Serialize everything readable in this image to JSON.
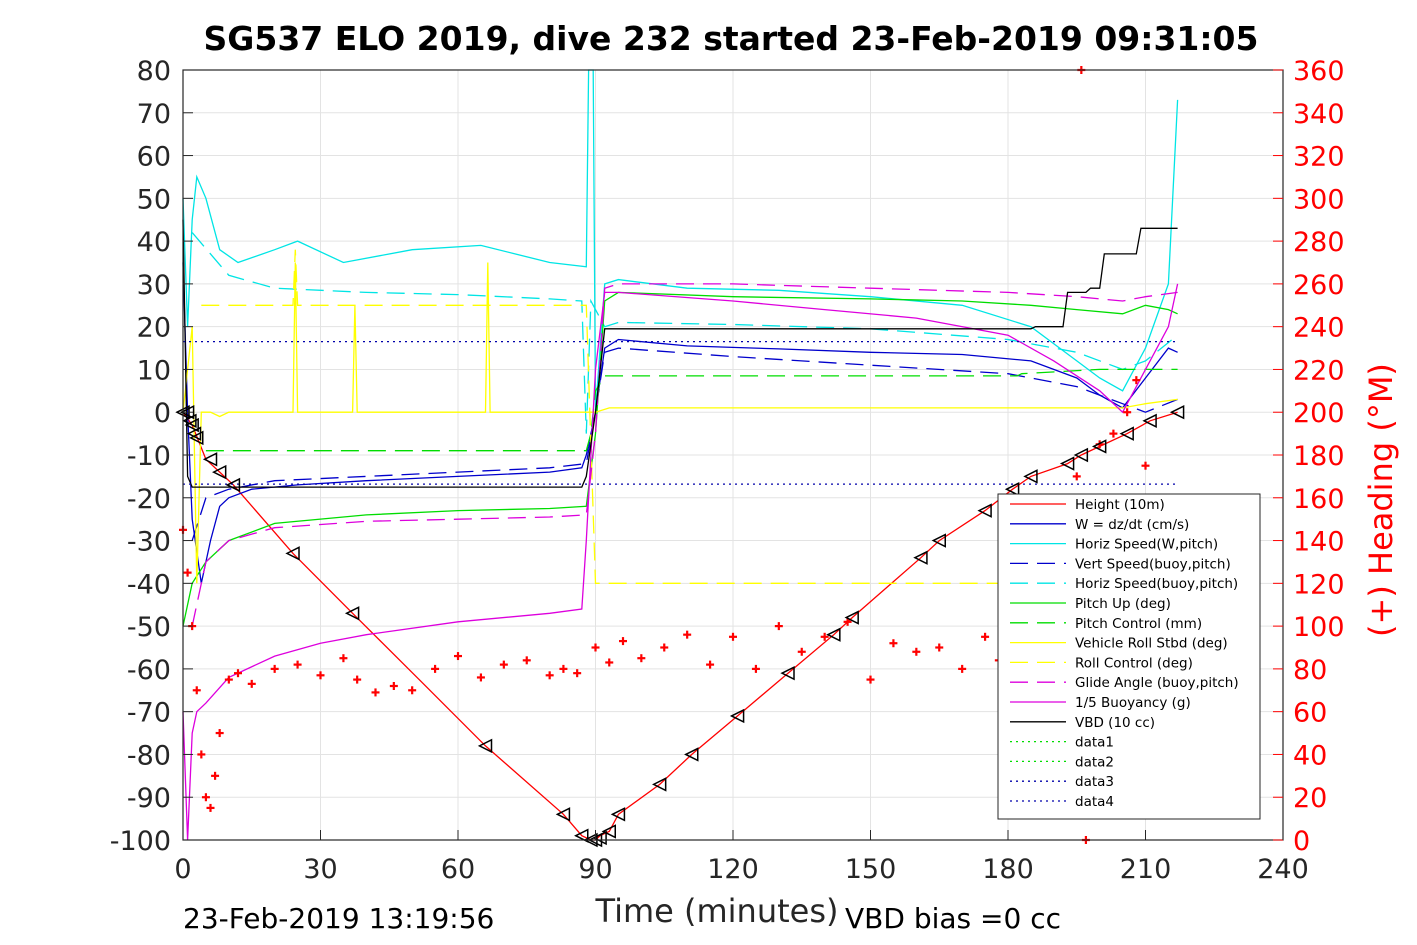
{
  "chart_data": {
    "type": "line",
    "title": "SG537 ELO 2019, dive 232 started 23-Feb-2019 09:31:05",
    "xlabel": "Time (minutes)",
    "ylabel": "",
    "ylabel_right": "(+) Heading (°M)",
    "xlim": [
      0,
      240
    ],
    "ylim": [
      -100,
      80
    ],
    "ylim_right": [
      0,
      360
    ],
    "x_ticks": [
      "0",
      "30",
      "60",
      "90",
      "120",
      "150",
      "180",
      "210",
      "240"
    ],
    "y_ticks": [
      "80",
      "70",
      "60",
      "50",
      "40",
      "30",
      "20",
      "10",
      "0",
      "-10",
      "-20",
      "-30",
      "-40",
      "-50",
      "-60",
      "-70",
      "-80",
      "-90",
      "-100"
    ],
    "y_right_ticks": [
      "360",
      "340",
      "320",
      "300",
      "280",
      "260",
      "240",
      "220",
      "200",
      "180",
      "160",
      "140",
      "120",
      "100",
      "80",
      "60",
      "40",
      "20",
      "0"
    ],
    "grid": true,
    "legend_position": "lower-right",
    "footer_left": "23-Feb-2019 13:19:56",
    "footer_right": "VBD bias =0 cc",
    "series": [
      {
        "name": "Height (10m)",
        "color": "#ff0000",
        "style": "solid",
        "x": [
          0,
          2,
          5,
          8,
          11,
          24,
          37,
          52,
          66,
          83,
          87,
          89,
          90,
          91,
          93,
          95,
          104,
          111,
          121,
          132,
          142,
          146,
          161,
          165,
          175,
          181,
          185,
          193,
          196,
          200,
          206,
          211,
          217
        ],
        "y": [
          0,
          -3,
          -11,
          -14,
          -17,
          -33,
          -47,
          -63,
          -78,
          -94,
          -99,
          -100,
          -100,
          -99,
          -98,
          -94,
          -87,
          -80,
          -71,
          -61,
          -52,
          -48,
          -34,
          -30,
          -23,
          -18,
          -15,
          -12,
          -10,
          -8,
          -5,
          -2,
          0
        ]
      },
      {
        "name": "W = dz/dt (cm/s)",
        "color": "#0000cc",
        "style": "solid",
        "x": [
          0,
          1,
          2,
          4,
          6,
          8,
          10,
          15,
          25,
          40,
          60,
          80,
          87,
          88,
          90,
          92,
          95,
          110,
          130,
          150,
          170,
          185,
          195,
          200,
          205,
          210,
          215,
          217
        ],
        "y": [
          35,
          0,
          -25,
          -40,
          -30,
          -22,
          -20,
          -18,
          -17,
          -16,
          -15,
          -14,
          -13,
          -10,
          0,
          15,
          17,
          15.5,
          14.8,
          14,
          13.5,
          12,
          8,
          4,
          1,
          8,
          15,
          14
        ]
      },
      {
        "name": "Horiz Speed(W,pitch)",
        "color": "#00e5e5",
        "style": "solid",
        "x": [
          0,
          1,
          2,
          3,
          5,
          8,
          12,
          20,
          25,
          35,
          50,
          65,
          80,
          88,
          88.5,
          89.5,
          90,
          92,
          95,
          110,
          130,
          150,
          170,
          185,
          195,
          200,
          205,
          210,
          215,
          217
        ],
        "y": [
          50,
          20,
          45,
          55,
          50,
          38,
          35,
          38,
          40,
          35,
          38,
          39,
          35,
          34,
          80,
          80,
          0,
          30,
          31,
          29,
          28.5,
          27,
          25,
          20,
          12,
          8,
          5,
          15,
          30,
          73
        ]
      },
      {
        "name": "Vert Speed(buoy,pitch)",
        "color": "#0000cc",
        "style": "dashed",
        "x": [
          2,
          5,
          10,
          20,
          40,
          60,
          80,
          88,
          90,
          92,
          95,
          120,
          150,
          180,
          195,
          205,
          210,
          217
        ],
        "y": [
          -30,
          -20,
          -18,
          -16,
          -15,
          -14,
          -13,
          -12,
          0,
          14,
          15,
          13,
          11,
          9,
          6,
          2,
          0,
          3
        ]
      },
      {
        "name": "Horiz Speed(buoy,pitch)",
        "color": "#00e5e5",
        "style": "dashed",
        "x": [
          2,
          10,
          20,
          40,
          60,
          80,
          87,
          88,
          89,
          92,
          95,
          120,
          150,
          180,
          195,
          205,
          210,
          217
        ],
        "y": [
          42,
          32,
          29,
          28,
          27.5,
          26.5,
          26,
          -5,
          26,
          20,
          21,
          20.5,
          19.5,
          17,
          14,
          10,
          12,
          18
        ]
      },
      {
        "name": "Pitch Up (deg)",
        "color": "#00dd00",
        "style": "solid",
        "x": [
          0,
          2,
          5,
          10,
          20,
          40,
          60,
          80,
          88,
          90,
          92,
          95,
          120,
          150,
          170,
          185,
          195,
          205,
          210,
          215,
          217
        ],
        "y": [
          -50,
          -40,
          -35,
          -30,
          -26,
          -24,
          -23,
          -22.5,
          -22,
          -5,
          26,
          28,
          27,
          26.5,
          26,
          25,
          24,
          23,
          25,
          24,
          23
        ]
      },
      {
        "name": "Pitch Control (mm)",
        "color": "#00dd00",
        "style": "dashed",
        "x": [
          5,
          88,
          89,
          90,
          92,
          182,
          183,
          200,
          217
        ],
        "y": [
          -9,
          -9,
          -5,
          5,
          8.5,
          8.5,
          9,
          10,
          10
        ]
      },
      {
        "name": "Vehicle Roll Stbd (deg)",
        "color": "#ffff00",
        "style": "solid",
        "x": [
          0,
          2,
          3,
          4,
          6,
          8,
          10,
          24,
          24.5,
          25,
          37,
          37.5,
          38,
          66,
          66.5,
          67,
          87,
          90,
          93,
          95,
          205,
          210,
          217
        ],
        "y": [
          0,
          20,
          -40,
          0,
          0,
          -1,
          0,
          0,
          35,
          0,
          0,
          25,
          0,
          0,
          35,
          0,
          0,
          0,
          1,
          1,
          1,
          2,
          3
        ]
      },
      {
        "name": "Roll Control (deg)",
        "color": "#ffff00",
        "style": "dashed",
        "x": [
          4,
          24,
          24.5,
          25,
          88,
          90,
          95,
          205,
          217
        ],
        "y": [
          25,
          25,
          38,
          25,
          25,
          -40,
          -40,
          -40,
          -40
        ]
      },
      {
        "name": "Glide Angle (buoy,pitch)",
        "color": "#dd00dd",
        "style": "dashed",
        "x": [
          2,
          5,
          10,
          20,
          40,
          60,
          80,
          88,
          90,
          92,
          95,
          120,
          150,
          180,
          195,
          205,
          210,
          217
        ],
        "y": [
          -50,
          -35,
          -30,
          -27,
          -25.5,
          -25,
          -24.5,
          -24,
          -5,
          29,
          30,
          30,
          29,
          28,
          27,
          26,
          27,
          28
        ]
      },
      {
        "name": "1/5 Buoyancy (g)",
        "color": "#dd00dd",
        "style": "solid",
        "x": [
          0,
          1,
          2,
          3,
          5,
          10,
          20,
          30,
          40,
          60,
          80,
          87,
          88,
          90,
          92,
          95,
          120,
          140,
          160,
          180,
          190,
          200,
          205,
          210,
          215,
          217
        ],
        "y": [
          -70,
          -100,
          -75,
          -70,
          -68,
          -62,
          -57,
          -54,
          -52,
          -49,
          -47,
          -46,
          -30,
          10,
          28,
          28,
          26,
          24,
          22,
          18,
          12,
          5,
          0,
          10,
          20,
          30
        ]
      },
      {
        "name": "VBD (10 cc)",
        "color": "#000000",
        "style": "solid",
        "x": [
          0,
          1,
          2,
          87,
          88,
          90,
          92,
          185,
          186,
          192,
          193,
          197,
          198,
          200,
          201,
          208,
          209,
          217
        ],
        "y": [
          45,
          -15,
          -17.5,
          -17.5,
          -15,
          0,
          19.5,
          19.5,
          20,
          20,
          28,
          28,
          29,
          29,
          37,
          37,
          43,
          43
        ]
      },
      {
        "name": "data1",
        "color": "#00dd00",
        "style": "dotted",
        "x": [],
        "y": []
      },
      {
        "name": "data2",
        "color": "#00dd00",
        "style": "dotted",
        "x": [],
        "y": []
      },
      {
        "name": "data3",
        "color": "#0000aa",
        "style": "dotted",
        "x": [
          0,
          217
        ],
        "y": [
          16.5,
          16.5
        ]
      },
      {
        "name": "data4",
        "color": "#0000aa",
        "style": "dotted",
        "x": [
          0,
          217
        ],
        "y": [
          -16.8,
          -16.8
        ]
      }
    ],
    "heading": {
      "axis": "right",
      "color": "#ff0000",
      "marker": "+",
      "x": [
        0,
        1,
        2,
        3,
        4,
        5,
        6,
        7,
        8,
        10,
        12,
        15,
        20,
        25,
        30,
        35,
        38,
        42,
        46,
        50,
        55,
        60,
        65,
        70,
        75,
        80,
        83,
        86,
        90,
        93,
        96,
        100,
        105,
        110,
        115,
        120,
        125,
        130,
        135,
        140,
        145,
        150,
        155,
        160,
        165,
        170,
        175,
        178,
        180,
        185,
        190,
        195,
        196,
        197,
        198,
        200,
        203,
        206,
        208,
        210
      ],
      "y": [
        145,
        125,
        100,
        70,
        40,
        20,
        15,
        30,
        50,
        75,
        78,
        73,
        80,
        82,
        77,
        85,
        75,
        69,
        72,
        70,
        80,
        86,
        76,
        82,
        84,
        77,
        80,
        78,
        90,
        83,
        93,
        85,
        90,
        96,
        82,
        95,
        80,
        100,
        88,
        95,
        102,
        75,
        92,
        88,
        90,
        80,
        95,
        84,
        125,
        150,
        155,
        170,
        360,
        0,
        160,
        185,
        190,
        200,
        215,
        175
      ]
    },
    "dive_markers": {
      "x": [
        0,
        1,
        1.5,
        2,
        2.5,
        3,
        6,
        8,
        11,
        24,
        37,
        66,
        83,
        87,
        89,
        90,
        91,
        93,
        95,
        104,
        111,
        121,
        132,
        142,
        146,
        161,
        165,
        175,
        181,
        185,
        193,
        196,
        200,
        206,
        211,
        217
      ],
      "y": [
        0,
        0,
        -2,
        -3,
        -5,
        -6,
        -11,
        -14,
        -17,
        -33,
        -47,
        -78,
        -94,
        -99,
        -100,
        -100,
        -99.5,
        -98,
        -94,
        -87,
        -80,
        -71,
        -61,
        -52,
        -48,
        -34,
        -30,
        -23,
        -18,
        -15,
        -12,
        -10,
        -8,
        -5,
        -2,
        0
      ]
    }
  }
}
